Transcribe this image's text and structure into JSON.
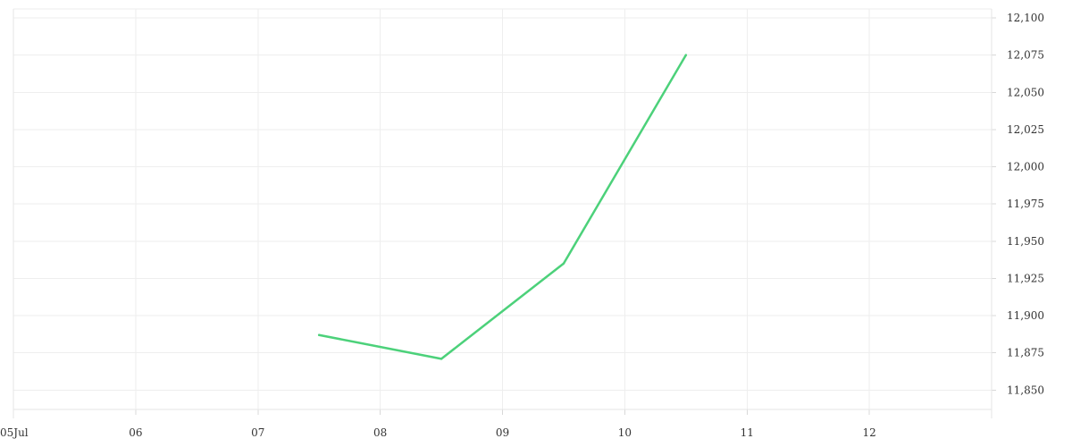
{
  "chart_data": {
    "type": "line",
    "x_ticks": [
      "05Jul",
      "06",
      "07",
      "08",
      "09",
      "10",
      "11",
      "12"
    ],
    "x_range": [
      "2024-07-05",
      "2024-07-13"
    ],
    "y_ticks": [
      "11,850",
      "11,875",
      "11,900",
      "11,925",
      "11,950",
      "11,975",
      "12,000",
      "12,025",
      "12,050",
      "12,075",
      "12,100"
    ],
    "ylim": [
      11837,
      12106
    ],
    "y_axis_position": "right",
    "grid": true,
    "legend": "none",
    "series": [
      {
        "color": "#4cd17a",
        "points": [
          {
            "x": "2024-07-07T12:00",
            "y": 11887
          },
          {
            "x": "2024-07-08T12:00",
            "y": 11871
          },
          {
            "x": "2024-07-09T12:00",
            "y": 11935
          },
          {
            "x": "2024-07-10T12:00",
            "y": 12075
          }
        ]
      }
    ]
  }
}
